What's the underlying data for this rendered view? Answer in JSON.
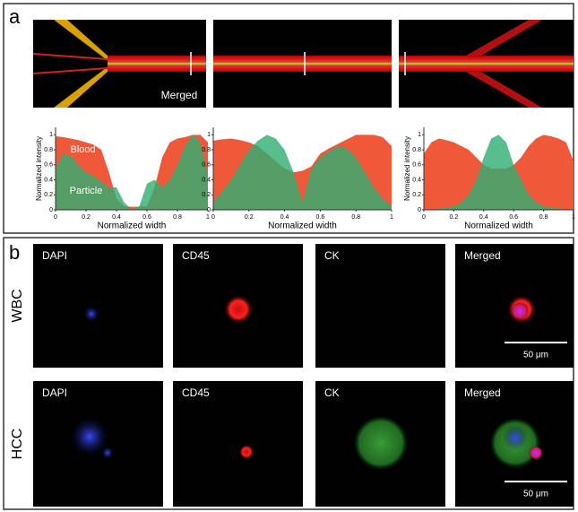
{
  "panel_a": {
    "label": "a",
    "image_label": "Merged"
  },
  "chart_data": [
    {
      "type": "area",
      "xlabel": "Normalized width",
      "ylabel": "Normalized intensity",
      "x": [
        0,
        0.05,
        0.1,
        0.15,
        0.2,
        0.25,
        0.3,
        0.35,
        0.4,
        0.45,
        0.5,
        0.55,
        0.6,
        0.65,
        0.7,
        0.75,
        0.8,
        0.85,
        0.9,
        0.95,
        1
      ],
      "series": [
        {
          "name": "Blood",
          "color": "#f0583a",
          "values": [
            0.98,
            0.97,
            0.95,
            0.93,
            0.9,
            0.87,
            0.8,
            0.5,
            0.15,
            0.05,
            0.04,
            0.04,
            0.05,
            0.3,
            0.7,
            0.9,
            0.95,
            0.97,
            1,
            1,
            0.9
          ]
        },
        {
          "name": "Particle",
          "color": "#2fae72",
          "values": [
            0.55,
            0.75,
            0.72,
            0.6,
            0.5,
            0.45,
            0.38,
            0.3,
            0.3,
            0.1,
            0,
            0.05,
            0.35,
            0.4,
            0.3,
            0.4,
            0.6,
            0.85,
            1,
            0.9,
            0.45
          ]
        }
      ],
      "xlim": [
        0,
        1
      ],
      "xticks": [
        0,
        0.2,
        0.4,
        0.6,
        0.8,
        1
      ],
      "ylim": [
        0,
        1.1
      ],
      "yticks": [
        0,
        0.2,
        0.4,
        0.6,
        0.8,
        1
      ]
    },
    {
      "type": "area",
      "xlabel": "Normalized width",
      "x": [
        0,
        0.05,
        0.1,
        0.15,
        0.2,
        0.25,
        0.3,
        0.35,
        0.4,
        0.45,
        0.5,
        0.55,
        0.6,
        0.65,
        0.7,
        0.75,
        0.8,
        0.85,
        0.9,
        0.95,
        1
      ],
      "series": [
        {
          "color": "#f0583a",
          "values": [
            0.92,
            0.94,
            0.95,
            0.93,
            0.9,
            0.85,
            0.75,
            0.65,
            0.55,
            0.5,
            0.52,
            0.58,
            0.75,
            0.82,
            0.88,
            0.94,
            1,
            1,
            1,
            0.97,
            0.85
          ]
        },
        {
          "color": "#2fae72",
          "values": [
            0.1,
            0.25,
            0.4,
            0.6,
            0.8,
            0.92,
            1,
            0.95,
            0.8,
            0.5,
            0.1,
            0.55,
            0.7,
            0.78,
            0.85,
            0.82,
            0.7,
            0.5,
            0.3,
            0.15,
            0.05
          ]
        }
      ],
      "xlim": [
        0,
        1
      ],
      "xticks": [
        0,
        0.2,
        0.4,
        0.6,
        0.8,
        1
      ],
      "ylim": [
        0,
        1.1
      ],
      "yticks": [
        0,
        0.2,
        0.4,
        0.6,
        0.8,
        1
      ]
    },
    {
      "type": "area",
      "xlabel": "Normalized width",
      "ylabel": "Normalized intensity",
      "x": [
        0,
        0.05,
        0.1,
        0.15,
        0.2,
        0.25,
        0.3,
        0.35,
        0.4,
        0.45,
        0.5,
        0.55,
        0.6,
        0.65,
        0.7,
        0.75,
        0.8,
        0.85,
        0.9,
        0.95,
        1
      ],
      "series": [
        {
          "color": "#f0583a",
          "values": [
            0.75,
            0.9,
            0.95,
            0.93,
            0.9,
            0.85,
            0.8,
            0.7,
            0.6,
            0.55,
            0.55,
            0.55,
            0.6,
            0.7,
            0.85,
            0.95,
            1,
            0.98,
            0.95,
            0.9,
            0.65
          ]
        },
        {
          "color": "#2fae72",
          "values": [
            0,
            0,
            0.02,
            0.03,
            0.05,
            0.1,
            0.2,
            0.4,
            0.7,
            0.95,
            1,
            0.9,
            0.6,
            0.4,
            0.2,
            0.1,
            0.05,
            0.03,
            0.02,
            0.01,
            0
          ]
        }
      ],
      "xlim": [
        0,
        1
      ],
      "xticks": [
        0,
        0.2,
        0.4,
        0.6,
        0.8,
        1
      ],
      "ylim": [
        0,
        1.1
      ],
      "yticks": [
        0,
        0.2,
        0.4,
        0.6,
        0.8,
        1
      ]
    }
  ],
  "panel_b": {
    "label": "b",
    "columns": [
      "DAPI",
      "CD45",
      "CK",
      "Merged"
    ],
    "rows": [
      "WBC",
      "HCC"
    ],
    "scale_bar": "50 μm"
  }
}
